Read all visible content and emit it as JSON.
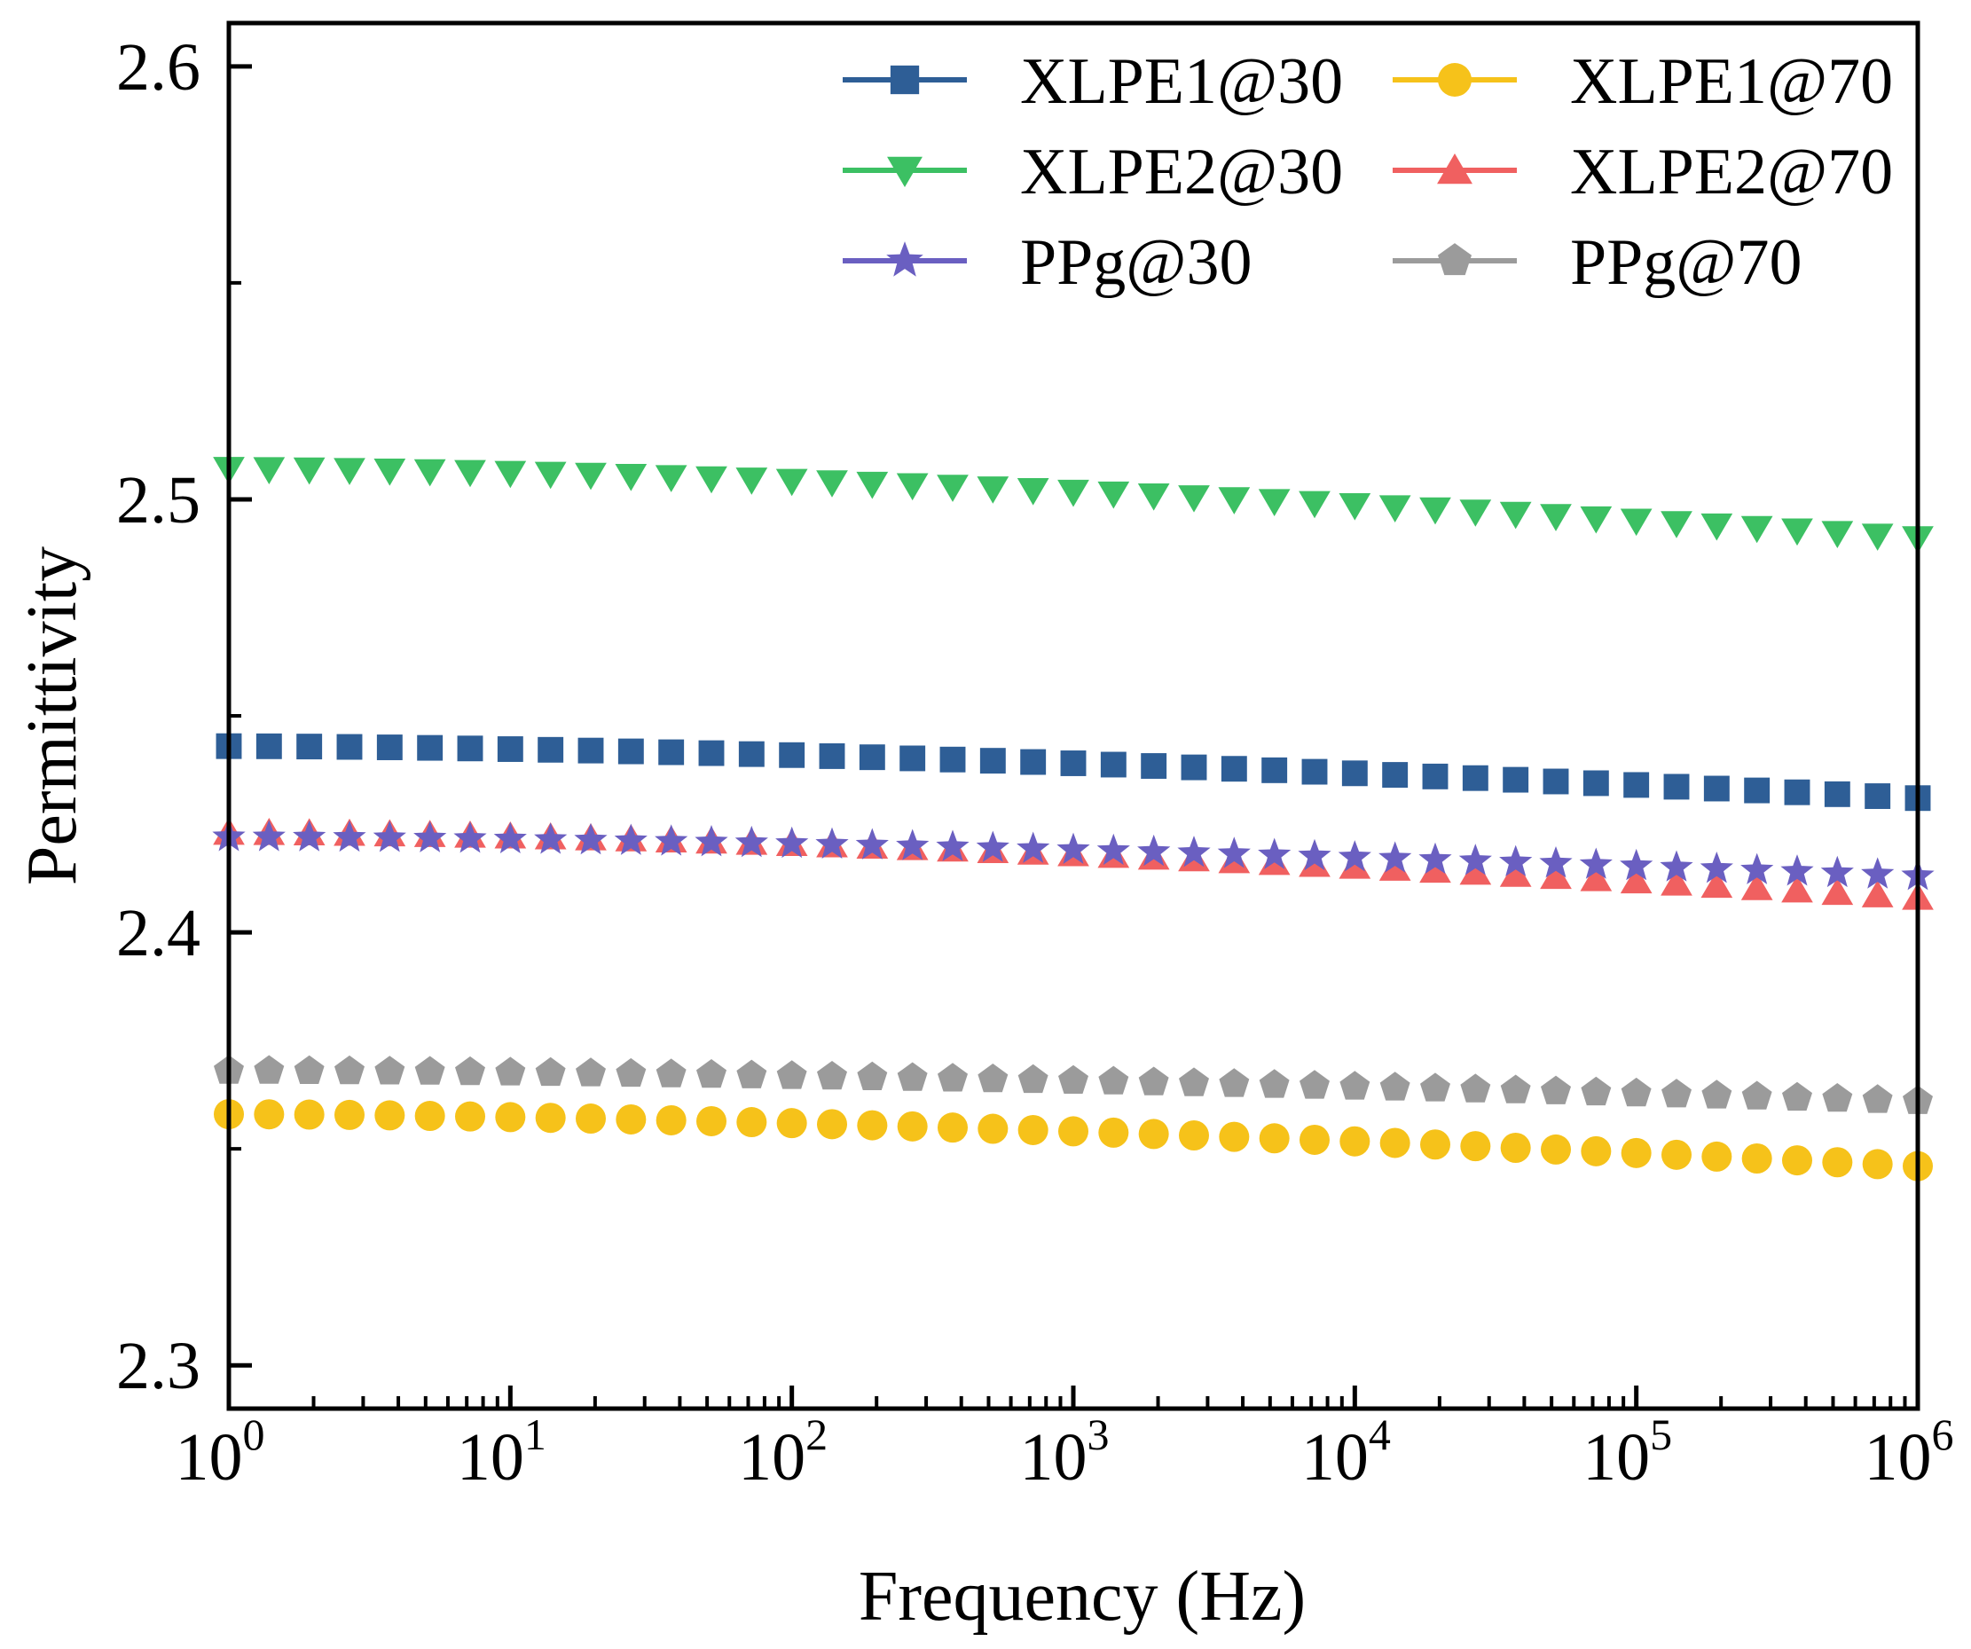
{
  "chart_data": {
    "type": "scatter",
    "xscale": "log",
    "xlabel": "Frequency (Hz)",
    "ylabel": "Permittivity",
    "xlim": [
      1,
      1000000
    ],
    "ylim": [
      2.29,
      2.61
    ],
    "x_ticks": [
      {
        "value": 1,
        "base": "10",
        "exp": "0"
      },
      {
        "value": 10,
        "base": "10",
        "exp": "1"
      },
      {
        "value": 100,
        "base": "10",
        "exp": "2"
      },
      {
        "value": 1000,
        "base": "10",
        "exp": "3"
      },
      {
        "value": 10000,
        "base": "10",
        "exp": "4"
      },
      {
        "value": 100000,
        "base": "10",
        "exp": "5"
      },
      {
        "value": 1000000,
        "base": "10",
        "exp": "6"
      }
    ],
    "y_ticks": [
      {
        "value": 2.3,
        "label": "2.3"
      },
      {
        "value": 2.4,
        "label": "2.4"
      },
      {
        "value": 2.5,
        "label": "2.5"
      },
      {
        "value": 2.6,
        "label": "2.6"
      }
    ],
    "legend_position": "top-right",
    "points_per_decade": 7,
    "series": [
      {
        "name": "XLPE1@30",
        "color": "#2E5E96",
        "marker": "square",
        "y_start": 2.443,
        "y_end": 2.431
      },
      {
        "name": "XLPE1@70",
        "color": "#F6C21A",
        "marker": "circle",
        "y_start": 2.358,
        "y_end": 2.346
      },
      {
        "name": "XLPE2@30",
        "color": "#3CC063",
        "marker": "triangle-down",
        "y_start": 2.507,
        "y_end": 2.491
      },
      {
        "name": "XLPE2@70",
        "color": "#F06060",
        "marker": "triangle-up",
        "y_start": 2.423,
        "y_end": 2.408
      },
      {
        "name": "PPg@30",
        "color": "#6A5FC1",
        "marker": "star",
        "y_start": 2.422,
        "y_end": 2.413
      },
      {
        "name": "PPg@70",
        "color": "#9B9B9B",
        "marker": "pentagon",
        "y_start": 2.368,
        "y_end": 2.361
      }
    ]
  }
}
